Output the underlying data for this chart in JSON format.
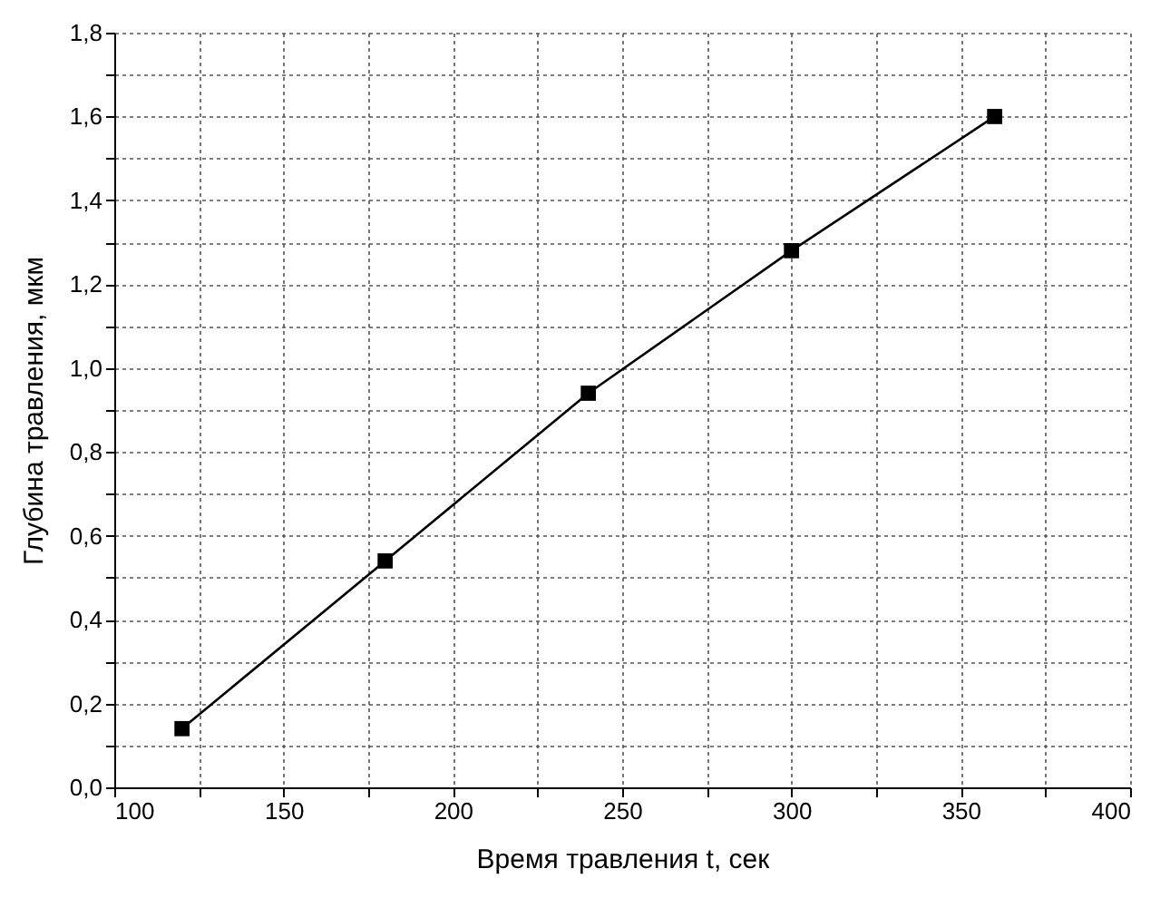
{
  "chart_data": {
    "type": "line",
    "xlabel": "Время травления t, сек",
    "ylabel": "Глубина травления, мкм",
    "x": [
      120,
      180,
      240,
      300,
      360
    ],
    "series": [
      {
        "color": "#000000",
        "values": [
          0.14,
          0.54,
          0.94,
          1.28,
          1.6
        ]
      }
    ],
    "marker": "square",
    "line_style": "solid",
    "grid": true,
    "xlim": [
      100,
      400
    ],
    "xticks": [
      100,
      {
        "value": 125,
        "label": null
      },
      150,
      {
        "value": 175,
        "label": null
      },
      200,
      {
        "value": 225,
        "label": null
      },
      250,
      {
        "value": 275,
        "label": null
      },
      300,
      {
        "value": 325,
        "label": null
      },
      350,
      {
        "value": 375,
        "label": null
      },
      400
    ],
    "ylim": [
      0,
      1.8
    ],
    "yticks": [
      {
        "value": 0,
        "label": "0,0"
      },
      {
        "value": 0.1,
        "label": null
      },
      {
        "value": 0.2,
        "label": "0,2"
      },
      {
        "value": 0.3,
        "label": null
      },
      {
        "value": 0.4,
        "label": "0,4"
      },
      {
        "value": 0.5,
        "label": null
      },
      {
        "value": 0.6,
        "label": "0,6"
      },
      {
        "value": 0.7,
        "label": null
      },
      {
        "value": 0.8,
        "label": "0,8"
      },
      {
        "value": 0.9,
        "label": null
      },
      {
        "value": 1.0,
        "label": "1,0"
      },
      {
        "value": 1.1,
        "label": null
      },
      {
        "value": 1.2,
        "label": "1,2"
      },
      {
        "value": 1.3,
        "label": null
      },
      {
        "value": 1.4,
        "label": "1,4"
      },
      {
        "value": 1.5,
        "label": null
      },
      {
        "value": 1.6,
        "label": "1,6"
      },
      {
        "value": 1.7,
        "label": null
      },
      {
        "value": 1.8,
        "label": "1,8"
      }
    ]
  }
}
